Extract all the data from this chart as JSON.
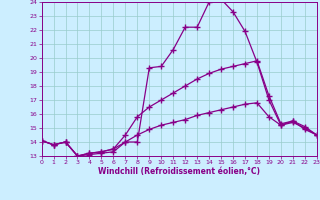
{
  "xlabel": "Windchill (Refroidissement éolien,°C)",
  "bg_color": "#cceeff",
  "grid_color": "#99cccc",
  "line_color": "#880088",
  "xmin": 0,
  "xmax": 23,
  "ymin": 13,
  "ymax": 24,
  "curve1_x": [
    0,
    1,
    2,
    3,
    4,
    5,
    6,
    7,
    8,
    9,
    10,
    11,
    12,
    13,
    14,
    15,
    16,
    17,
    18,
    19,
    20,
    21,
    22,
    23
  ],
  "curve1_y": [
    14.1,
    13.8,
    14.0,
    13.0,
    13.1,
    13.2,
    13.3,
    14.0,
    14.0,
    19.3,
    19.4,
    20.6,
    22.2,
    22.2,
    24.0,
    24.2,
    23.3,
    21.9,
    19.7,
    17.0,
    15.2,
    15.5,
    14.9,
    14.5
  ],
  "curve2_x": [
    0,
    1,
    2,
    3,
    4,
    5,
    6,
    7,
    8,
    9,
    10,
    11,
    12,
    13,
    14,
    15,
    16,
    17,
    18,
    19,
    20,
    21,
    22,
    23
  ],
  "curve2_y": [
    14.1,
    13.8,
    14.0,
    13.0,
    13.2,
    13.3,
    13.5,
    14.5,
    15.8,
    16.5,
    17.0,
    17.5,
    18.0,
    18.5,
    18.9,
    19.2,
    19.4,
    19.6,
    19.8,
    17.3,
    15.3,
    15.5,
    15.1,
    14.5
  ],
  "curve3_x": [
    0,
    1,
    2,
    3,
    4,
    5,
    6,
    7,
    8,
    9,
    10,
    11,
    12,
    13,
    14,
    15,
    16,
    17,
    18,
    19,
    20,
    21,
    22,
    23
  ],
  "curve3_y": [
    14.1,
    13.8,
    14.0,
    13.0,
    13.2,
    13.3,
    13.5,
    14.0,
    14.5,
    14.9,
    15.2,
    15.4,
    15.6,
    15.9,
    16.1,
    16.3,
    16.5,
    16.7,
    16.8,
    15.8,
    15.2,
    15.4,
    15.0,
    14.5
  ]
}
